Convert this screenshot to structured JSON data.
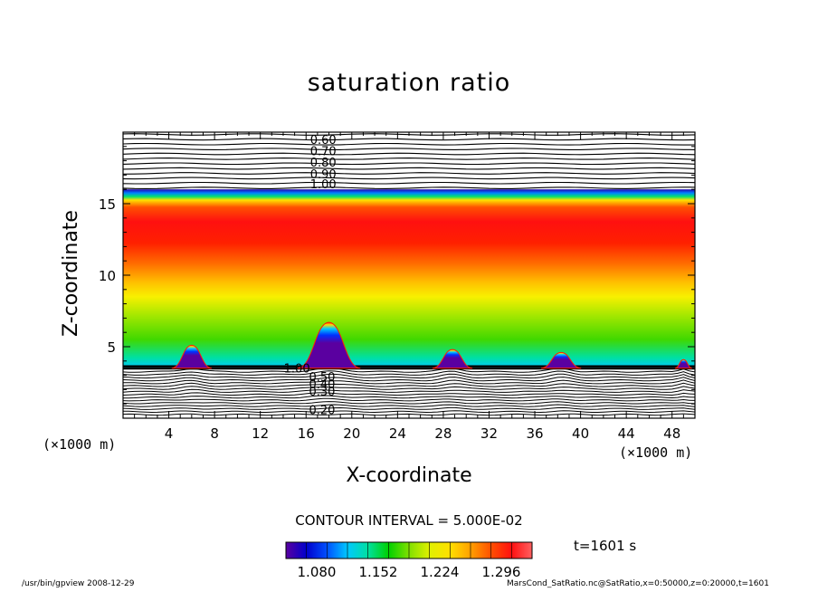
{
  "chart_data": {
    "type": "heatmap",
    "title": "saturation ratio",
    "xlabel": "X-coordinate",
    "ylabel": "Z-coordinate",
    "x_unit_label": "(×1000 m)",
    "z_unit_label": "(×1000 m)",
    "xlim": [
      0,
      50
    ],
    "ylim": [
      0,
      20
    ],
    "x_ticks": [
      4,
      8,
      12,
      16,
      20,
      24,
      28,
      32,
      36,
      40,
      44,
      48
    ],
    "y_ticks": [
      5,
      10,
      15
    ],
    "contour_interval": "CONTOUR INTERVAL = 5.000E-02",
    "upper_contour_labels": [
      {
        "label": "0.60",
        "x": 17.5,
        "z": 19.5
      },
      {
        "label": "0.70",
        "x": 17.5,
        "z": 18.7
      },
      {
        "label": "0.80",
        "x": 17.5,
        "z": 17.9
      },
      {
        "label": "0.90",
        "x": 17.5,
        "z": 17.1
      },
      {
        "label": "1.00",
        "x": 17.5,
        "z": 16.4
      }
    ],
    "lower_contour_labels": [
      {
        "label": "1.00",
        "x": 15.2,
        "z": 3.5
      },
      {
        "label": "0.50",
        "x": 17.4,
        "z": 2.9
      },
      {
        "label": "0.40",
        "x": 17.4,
        "z": 2.4
      },
      {
        "label": "0.30",
        "x": 17.4,
        "z": 1.9
      },
      {
        "label": "0.20",
        "x": 17.4,
        "z": 0.6
      }
    ],
    "layers": [
      {
        "z_bottom": 3.5,
        "z_top": 16.0,
        "field": "supersaturated band"
      }
    ],
    "bumps": [
      {
        "x": 6.0,
        "width": 3.5,
        "top_z": 5.1
      },
      {
        "x": 18.0,
        "width": 5.5,
        "top_z": 6.7
      },
      {
        "x": 28.8,
        "width": 3.5,
        "top_z": 4.8
      },
      {
        "x": 38.3,
        "width": 3.5,
        "top_z": 4.6
      },
      {
        "x": 49.0,
        "width": 1.5,
        "top_z": 4.1
      }
    ],
    "colorbar": {
      "min": 1.044,
      "max": 1.332,
      "tick_labels": [
        "1.080",
        "1.152",
        "1.224",
        "1.296"
      ],
      "tick_values": [
        1.08,
        1.152,
        1.224,
        1.296
      ],
      "colors": [
        "#5a00a0",
        "#0000cc",
        "#0050ff",
        "#00c8ff",
        "#00e0a0",
        "#00d000",
        "#80e000",
        "#e0f000",
        "#ffe000",
        "#ffa000",
        "#ff5000",
        "#ff1010",
        "#ff6060"
      ]
    }
  },
  "time_label": "t=1601 s",
  "footer_left": "/usr/bin/gpview   2008-12-29",
  "footer_right": "MarsCond_SatRatio.nc@SatRatio,x=0:50000,z=0:20000,t=1601"
}
